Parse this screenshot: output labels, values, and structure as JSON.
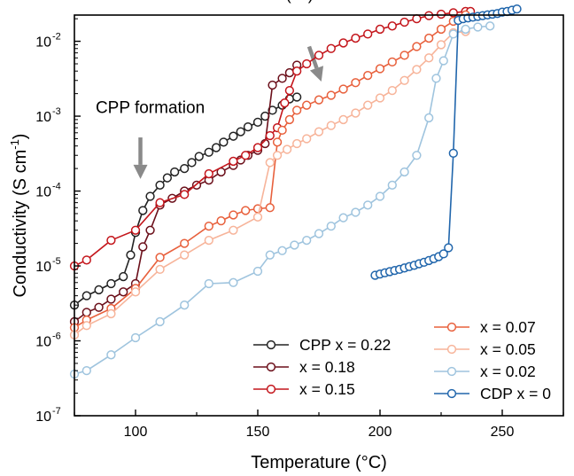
{
  "chart_data": {
    "type": "scatter",
    "xlabel": "Temperature (°C)",
    "ylabel_main": "Conductivity (S cm",
    "ylabel_sup": "-1",
    "ylabel_close": ")",
    "xlim": [
      75,
      275
    ],
    "ylim_log10": [
      -7,
      -1.65
    ],
    "x_scale": "linear",
    "y_scale": "log",
    "x_ticks": [
      100,
      150,
      200,
      250
    ],
    "x_tick_labels": [
      "100",
      "150",
      "200",
      "250"
    ],
    "y_ticks_exp": [
      -7,
      -6,
      -5,
      -4,
      -3,
      -2
    ],
    "y_tick_labels": [
      {
        "base": "10",
        "exp": "-7"
      },
      {
        "base": "10",
        "exp": "-6"
      },
      {
        "base": "10",
        "exp": "-5"
      },
      {
        "base": "10",
        "exp": "-4"
      },
      {
        "base": "10",
        "exp": "-3"
      },
      {
        "base": "10",
        "exp": "-2"
      }
    ],
    "annotations": [
      {
        "text": "α-CDP(ss) formation",
        "x": 172,
        "y": 0.036,
        "arrow_from": [
          171,
          0.0085
        ],
        "arrow_to": [
          176,
          0.0029
        ]
      },
      {
        "text": "CPP formation",
        "x": 106,
        "y": 0.0011,
        "arrow_from": [
          102,
          0.00052
        ],
        "arrow_to": [
          102,
          0.000145
        ]
      }
    ],
    "series": [
      {
        "name": "CPP x = 0.22",
        "color": "#222222",
        "x": [
          75,
          80,
          85,
          90,
          95,
          98,
          100,
          103,
          106,
          110,
          113,
          116,
          120,
          123,
          126,
          130,
          133,
          136,
          140,
          143,
          146,
          150,
          153,
          156,
          160,
          163,
          166
        ],
        "y": [
          3e-06,
          4e-06,
          4.8e-06,
          5.8e-06,
          7.2e-06,
          1.4e-05,
          2.8e-05,
          5.5e-05,
          8.5e-05,
          0.00012,
          0.00015,
          0.00018,
          0.0002,
          0.00024,
          0.00029,
          0.00033,
          0.00038,
          0.00045,
          0.00054,
          0.00062,
          0.00072,
          0.00083,
          0.001,
          0.0012,
          0.0014,
          0.0017,
          0.0018
        ]
      },
      {
        "name": "x = 0.18",
        "color": "#6b0f1a",
        "x": [
          75,
          80,
          85,
          90,
          95,
          100,
          103,
          106,
          110,
          115,
          120,
          125,
          130,
          135,
          140,
          143,
          146,
          150,
          153,
          156,
          160,
          163,
          166
        ],
        "y": [
          1.8e-06,
          2.4e-06,
          2.8e-06,
          3.6e-06,
          4.5e-06,
          5.8e-06,
          1.8e-05,
          3e-05,
          6.5e-05,
          8e-05,
          0.0001,
          0.00012,
          0.00014,
          0.00018,
          0.00022,
          0.00026,
          0.0003,
          0.00035,
          0.00043,
          0.0026,
          0.0032,
          0.0038,
          0.0048
        ]
      },
      {
        "name": "x = 0.15",
        "color": "#c4161c",
        "x": [
          75,
          80,
          90,
          100,
          110,
          120,
          130,
          140,
          145,
          150,
          155,
          158,
          161,
          163,
          166,
          170,
          175,
          180,
          185,
          190,
          195,
          200,
          205,
          210,
          215,
          220,
          225,
          230,
          235,
          237
        ],
        "y": [
          1e-05,
          1.2e-05,
          2.2e-05,
          3e-05,
          7e-05,
          9e-05,
          0.00017,
          0.00025,
          0.0003,
          0.00038,
          0.00055,
          0.0007,
          0.0015,
          0.0022,
          0.004,
          0.005,
          0.0065,
          0.008,
          0.0095,
          0.011,
          0.0125,
          0.0145,
          0.016,
          0.018,
          0.02,
          0.022,
          0.023,
          0.024,
          0.025,
          0.025
        ]
      },
      {
        "name": "x = 0.07",
        "color": "#e8603c",
        "x": [
          75,
          80,
          90,
          100,
          110,
          120,
          130,
          135,
          140,
          145,
          150,
          155,
          158,
          160,
          163,
          166,
          170,
          175,
          180,
          185,
          190,
          195,
          200,
          205,
          210,
          215,
          220,
          225,
          230,
          235
        ],
        "y": [
          1.5e-06,
          1.9e-06,
          2.7e-06,
          5e-06,
          1.3e-05,
          2e-05,
          3.4e-05,
          4e-05,
          4.8e-05,
          5.5e-05,
          5.8e-05,
          6e-05,
          0.00045,
          0.00065,
          0.0009,
          0.0012,
          0.0014,
          0.00165,
          0.0019,
          0.0023,
          0.0028,
          0.0035,
          0.0043,
          0.0053,
          0.0065,
          0.0085,
          0.011,
          0.0145,
          0.0185,
          0.0225
        ]
      },
      {
        "name": "x = 0.05",
        "color": "#f7b49a",
        "x": [
          75,
          80,
          90,
          100,
          110,
          120,
          130,
          140,
          150,
          155,
          158,
          162,
          166,
          170,
          175,
          180,
          185,
          190,
          195,
          200,
          205,
          210,
          215,
          220,
          225,
          230,
          235
        ],
        "y": [
          1.2e-06,
          1.6e-06,
          2.3e-06,
          4.5e-06,
          9e-06,
          1.4e-05,
          2.2e-05,
          3e-05,
          4.5e-05,
          0.00024,
          0.0003,
          0.00036,
          0.00043,
          0.0005,
          0.00062,
          0.00075,
          0.0009,
          0.0011,
          0.0014,
          0.00175,
          0.0022,
          0.003,
          0.0042,
          0.006,
          0.009,
          0.013,
          0.0135
        ]
      },
      {
        "name": "x = 0.02",
        "color": "#9fc4de",
        "x": [
          75,
          80,
          90,
          100,
          110,
          120,
          130,
          140,
          150,
          155,
          160,
          165,
          170,
          175,
          180,
          185,
          190,
          195,
          200,
          205,
          210,
          215,
          220,
          223,
          226,
          230,
          235,
          240,
          245
        ],
        "y": [
          3.6e-07,
          4e-07,
          6.5e-07,
          1.1e-06,
          1.8e-06,
          3e-06,
          5.8e-06,
          6e-06,
          8.5e-06,
          1.4e-05,
          1.6e-05,
          1.9e-05,
          2.2e-05,
          2.7e-05,
          3.4e-05,
          4.4e-05,
          5.2e-05,
          6.5e-05,
          8.5e-05,
          0.00012,
          0.00018,
          0.0003,
          0.00095,
          0.0032,
          0.0055,
          0.0125,
          0.0145,
          0.0155,
          0.016
        ]
      },
      {
        "name": "CDP x = 0",
        "color": "#2166ac",
        "x": [
          198,
          200,
          202,
          204,
          206,
          208,
          210,
          212,
          214,
          216,
          218,
          220,
          222,
          224,
          226,
          228,
          230,
          232,
          234,
          236,
          238,
          240,
          242,
          244,
          246,
          248,
          250,
          252,
          254,
          256
        ],
        "y": [
          7.5e-06,
          7.8e-06,
          8.1e-06,
          8.4e-06,
          8.7e-06,
          9e-06,
          9.4e-06,
          9.8e-06,
          1.02e-05,
          1.07e-05,
          1.12e-05,
          1.18e-05,
          1.25e-05,
          1.33e-05,
          1.45e-05,
          1.75e-05,
          0.00032,
          0.019,
          0.02,
          0.0205,
          0.021,
          0.0215,
          0.022,
          0.0225,
          0.023,
          0.0235,
          0.0245,
          0.025,
          0.026,
          0.027
        ]
      }
    ]
  }
}
